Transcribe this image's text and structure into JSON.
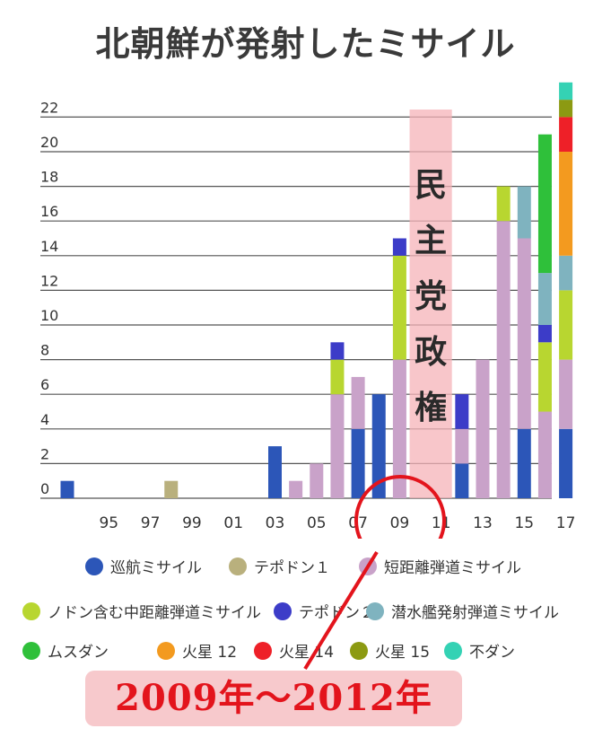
{
  "chart_data": {
    "type": "bar",
    "stacked": true,
    "title": "北朝鮮が発射したミサイル",
    "xlabel": "",
    "ylabel": "",
    "ylim": [
      0,
      23
    ],
    "yticks": [
      0,
      2,
      4,
      6,
      8,
      10,
      12,
      14,
      16,
      18,
      20,
      22
    ],
    "xticks": [
      "95",
      "97",
      "99",
      "01",
      "03",
      "05",
      "07",
      "09",
      "11",
      "13",
      "15",
      "17"
    ],
    "x_range": [
      1993,
      2017
    ],
    "grid": true,
    "legend_position": "bottom",
    "series": [
      {
        "key": "cruise",
        "name": "巡航ミサイル",
        "color": "#2c56b8"
      },
      {
        "key": "taepodong1",
        "name": "テポドン１",
        "color": "#b9b07d"
      },
      {
        "key": "short",
        "name": "短距離弾道ミサイル",
        "color": "#c9a2c9"
      },
      {
        "key": "nodong",
        "name": "ノドン含む中距離弾道ミサイル",
        "color": "#b8d630"
      },
      {
        "key": "taepodong2",
        "name": "テポドン２",
        "color": "#3c3cc8"
      },
      {
        "key": "slbm",
        "name": "潜水艦発射弾道ミサイル",
        "color": "#7fb3bf"
      },
      {
        "key": "musudan",
        "name": "ムスダン",
        "color": "#2fc03a"
      },
      {
        "key": "hwasong12",
        "name": "火星 12",
        "color": "#f39a1f"
      },
      {
        "key": "hwasong14",
        "name": "火星 14",
        "color": "#ee2028"
      },
      {
        "key": "hwasong15",
        "name": "火星 15",
        "color": "#8c9a12"
      },
      {
        "key": "unknown",
        "name": "不ダン",
        "color": "#34d2b4"
      }
    ],
    "bars": [
      {
        "year": 1993,
        "stack": [
          {
            "s": "cruise",
            "v": 1
          }
        ]
      },
      {
        "year": 1998,
        "stack": [
          {
            "s": "taepodong1",
            "v": 1
          }
        ]
      },
      {
        "year": 2003,
        "stack": [
          {
            "s": "cruise",
            "v": 3
          }
        ]
      },
      {
        "year": 2004,
        "stack": [
          {
            "s": "short",
            "v": 1
          }
        ]
      },
      {
        "year": 2005,
        "stack": [
          {
            "s": "short",
            "v": 2
          }
        ]
      },
      {
        "year": 2006,
        "stack": [
          {
            "s": "short",
            "v": 6
          },
          {
            "s": "nodong",
            "v": 2
          },
          {
            "s": "taepodong2",
            "v": 1
          }
        ]
      },
      {
        "year": 2007,
        "stack": [
          {
            "s": "cruise",
            "v": 4
          },
          {
            "s": "short",
            "v": 3
          }
        ]
      },
      {
        "year": 2008,
        "stack": [
          {
            "s": "cruise",
            "v": 6
          }
        ]
      },
      {
        "year": 2009,
        "stack": [
          {
            "s": "short",
            "v": 8
          },
          {
            "s": "nodong",
            "v": 6
          },
          {
            "s": "taepodong2",
            "v": 1
          }
        ]
      },
      {
        "year": 2012,
        "stack": [
          {
            "s": "cruise",
            "v": 2
          },
          {
            "s": "short",
            "v": 2
          },
          {
            "s": "taepodong2",
            "v": 2
          }
        ]
      },
      {
        "year": 2013,
        "stack": [
          {
            "s": "short",
            "v": 8
          }
        ]
      },
      {
        "year": 2014,
        "stack": [
          {
            "s": "short",
            "v": 16
          },
          {
            "s": "nodong",
            "v": 2
          }
        ]
      },
      {
        "year": 2015,
        "stack": [
          {
            "s": "cruise",
            "v": 4
          },
          {
            "s": "short",
            "v": 11
          },
          {
            "s": "slbm",
            "v": 3
          }
        ]
      },
      {
        "year": 2016,
        "stack": [
          {
            "s": "short",
            "v": 5
          },
          {
            "s": "nodong",
            "v": 4
          },
          {
            "s": "taepodong2",
            "v": 1
          },
          {
            "s": "slbm",
            "v": 3
          },
          {
            "s": "musudan",
            "v": 8
          }
        ]
      },
      {
        "year": 2017,
        "stack": [
          {
            "s": "cruise",
            "v": 4
          },
          {
            "s": "short",
            "v": 4
          },
          {
            "s": "nodong",
            "v": 4
          },
          {
            "s": "slbm",
            "v": 2
          },
          {
            "s": "hwasong12",
            "v": 6
          },
          {
            "s": "hwasong14",
            "v": 2
          },
          {
            "s": "hwasong15",
            "v": 1
          },
          {
            "s": "unknown",
            "v": 1
          }
        ]
      }
    ],
    "annotations": {
      "band_label": "民主党政権",
      "band_years": [
        2010,
        2011
      ],
      "bottom_label": "2009年～2012年"
    }
  }
}
